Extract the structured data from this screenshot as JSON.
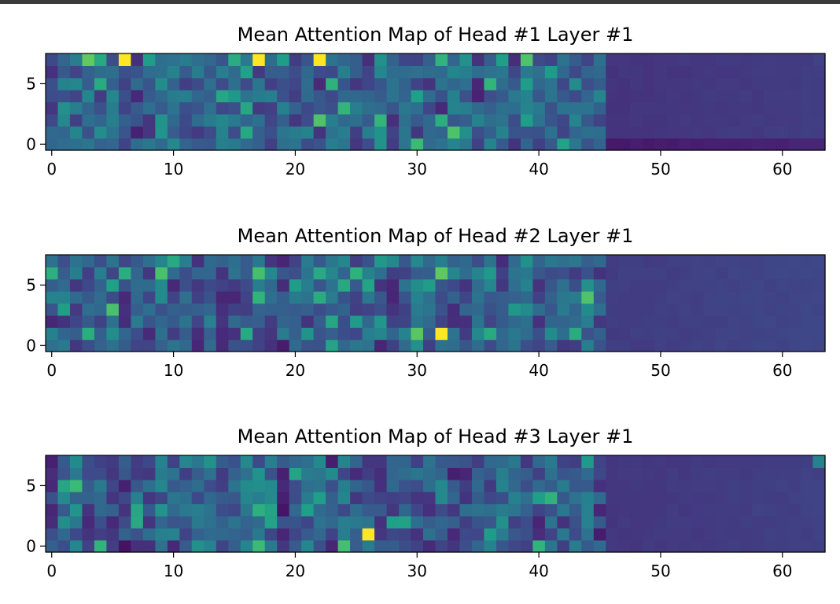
{
  "colors": {
    "viridis_stops": [
      "#440154",
      "#482878",
      "#3e4989",
      "#31688e",
      "#26828e",
      "#1f9e89",
      "#35b779",
      "#6ece58",
      "#b5de2b",
      "#fde725"
    ],
    "frame": "#000000",
    "text": "#000000",
    "top_bar": "#3a3a3a"
  },
  "chart_data": [
    {
      "type": "heatmap",
      "title": "Mean Attention Map of Head #1 Layer #1",
      "xlabel": "",
      "ylabel": "",
      "x_range": [
        -0.5,
        63.5
      ],
      "y_range": [
        -0.5,
        7.5
      ],
      "xticks": [
        0,
        10,
        20,
        30,
        40,
        50,
        60
      ],
      "yticks": [
        0,
        5
      ],
      "grid": false,
      "colormap": "viridis",
      "value_range": [
        0,
        1
      ],
      "active_columns": 46,
      "seed": 7,
      "base_level": 0.22,
      "padding_level": 0.15,
      "hotspots": [
        {
          "x": 6,
          "y": 7,
          "v": 1.0
        },
        {
          "x": 17,
          "y": 7,
          "v": 1.0
        },
        {
          "x": 22,
          "y": 7,
          "v": 1.0
        },
        {
          "x": 22,
          "y": 2,
          "v": 0.72
        },
        {
          "x": 39,
          "y": 7,
          "v": 0.72
        },
        {
          "x": 32,
          "y": 7,
          "v": 0.65
        },
        {
          "x": 32,
          "y": 2,
          "v": 0.62
        },
        {
          "x": 4,
          "y": 7,
          "v": 0.6
        },
        {
          "x": 8,
          "y": 7,
          "v": 0.55
        },
        {
          "x": 19,
          "y": 7,
          "v": 0.55
        },
        {
          "x": 34,
          "y": 7,
          "v": 0.5
        },
        {
          "x": 39,
          "y": 5,
          "v": 0.55
        }
      ]
    },
    {
      "type": "heatmap",
      "title": "Mean Attention Map of Head #2 Layer #1",
      "xlabel": "",
      "ylabel": "",
      "x_range": [
        -0.5,
        63.5
      ],
      "y_range": [
        -0.5,
        7.5
      ],
      "xticks": [
        0,
        10,
        20,
        30,
        40,
        50,
        60
      ],
      "yticks": [
        0,
        5
      ],
      "grid": false,
      "colormap": "viridis",
      "value_range": [
        0,
        1
      ],
      "active_columns": 46,
      "seed": 23,
      "base_level": 0.2,
      "padding_level": 0.18,
      "hotspots": [
        {
          "x": 32,
          "y": 1,
          "v": 1.0
        },
        {
          "x": 32,
          "y": 6,
          "v": 0.75
        },
        {
          "x": 17,
          "y": 6,
          "v": 0.7
        },
        {
          "x": 17,
          "y": 4,
          "v": 0.65
        },
        {
          "x": 6,
          "y": 6,
          "v": 0.62
        },
        {
          "x": 3,
          "y": 1,
          "v": 0.62
        },
        {
          "x": 16,
          "y": 1,
          "v": 0.6
        },
        {
          "x": 22,
          "y": 6,
          "v": 0.6
        },
        {
          "x": 20,
          "y": 5,
          "v": 0.55
        },
        {
          "x": 31,
          "y": 5,
          "v": 0.55
        },
        {
          "x": 30,
          "y": 0,
          "v": 0.5
        },
        {
          "x": 0,
          "y": 4,
          "v": 0.45
        }
      ]
    },
    {
      "type": "heatmap",
      "title": "Mean Attention Map of Head #3 Layer #1",
      "xlabel": "",
      "ylabel": "",
      "x_range": [
        -0.5,
        63.5
      ],
      "y_range": [
        -0.5,
        7.5
      ],
      "xticks": [
        0,
        10,
        20,
        30,
        40,
        50,
        60
      ],
      "yticks": [
        0,
        5
      ],
      "grid": false,
      "colormap": "viridis",
      "value_range": [
        0,
        1
      ],
      "active_columns": 46,
      "seed": 41,
      "base_level": 0.18,
      "padding_level": 0.16,
      "hotspots": [
        {
          "x": 26,
          "y": 1,
          "v": 1.0
        },
        {
          "x": 24,
          "y": 0,
          "v": 0.7
        },
        {
          "x": 17,
          "y": 0,
          "v": 0.68
        },
        {
          "x": 4,
          "y": 0,
          "v": 0.65
        },
        {
          "x": 40,
          "y": 0,
          "v": 0.65
        },
        {
          "x": 7,
          "y": 2,
          "v": 0.6
        },
        {
          "x": 18,
          "y": 3,
          "v": 0.58
        },
        {
          "x": 20,
          "y": 6,
          "v": 0.58
        },
        {
          "x": 36,
          "y": 1,
          "v": 0.55
        },
        {
          "x": 12,
          "y": 0,
          "v": 0.5
        },
        {
          "x": 63,
          "y": 7,
          "v": 0.45
        },
        {
          "x": 10,
          "y": 1,
          "v": 0.45
        }
      ]
    }
  ]
}
